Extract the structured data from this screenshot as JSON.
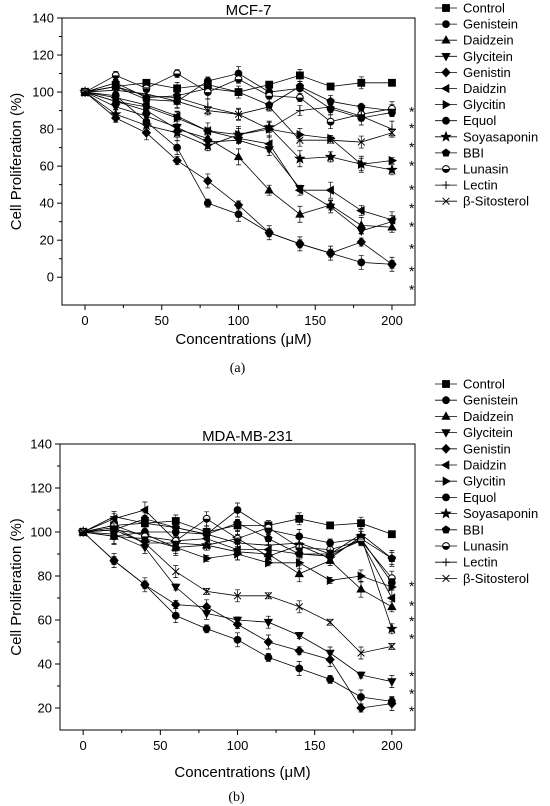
{
  "chart_data": [
    {
      "type": "line",
      "title": "MCF-7",
      "panel_label": "(a)",
      "xlabel": "Concentrations (μM)",
      "ylabel": "Cell Proliferation (%)",
      "xlim": [
        -15,
        215
      ],
      "ylim": [
        -15,
        140
      ],
      "xticks": [
        0,
        50,
        100,
        150,
        200
      ],
      "yticks": [
        0,
        20,
        40,
        60,
        80,
        100,
        120,
        140
      ],
      "grid": false,
      "legend_position": "right",
      "significance_marker": "*",
      "significance_y": [
        90,
        81,
        71,
        61,
        48,
        38,
        28,
        16,
        4,
        -6
      ],
      "x": [
        0,
        20,
        40,
        60,
        80,
        100,
        120,
        140,
        160,
        180,
        200
      ],
      "series": [
        {
          "name": "Control",
          "marker": "square",
          "values": [
            100,
            103,
            105,
            102,
            104,
            100,
            104,
            109,
            103,
            105,
            105
          ]
        },
        {
          "name": "Genistein",
          "marker": "circle",
          "values": [
            100,
            98,
            84,
            70,
            40,
            34,
            24,
            18,
            13,
            8,
            7
          ]
        },
        {
          "name": "Daidzein",
          "marker": "triangle-up",
          "values": [
            100,
            95,
            90,
            80,
            75,
            65,
            47,
            34,
            39,
            28,
            27
          ]
        },
        {
          "name": "Glycitein",
          "marker": "triangle-down",
          "values": [
            100,
            92,
            87,
            81,
            73,
            74,
            69,
            48,
            38,
            25,
            30
          ]
        },
        {
          "name": "Genistin",
          "marker": "diamond",
          "values": [
            100,
            86,
            78,
            63,
            52,
            39,
            24,
            18,
            13,
            19,
            7
          ]
        },
        {
          "name": "Daidzin",
          "marker": "triangle-left",
          "values": [
            100,
            97,
            93,
            87,
            79,
            75,
            72,
            47,
            47,
            36,
            31
          ]
        },
        {
          "name": "Glycitin",
          "marker": "triangle-right",
          "values": [
            100,
            95,
            92,
            86,
            79,
            77,
            80,
            77,
            75,
            61,
            63
          ]
        },
        {
          "name": "Equol",
          "marker": "circle",
          "values": [
            100,
            103,
            96,
            95,
            106,
            110,
            100,
            102,
            91,
            86,
            89
          ]
        },
        {
          "name": "Soyasaponin",
          "marker": "star",
          "values": [
            100,
            88,
            82,
            78,
            71,
            77,
            81,
            64,
            65,
            61,
            58
          ]
        },
        {
          "name": "BBI",
          "marker": "pentagon",
          "values": [
            100,
            105,
            97,
            98,
            102,
            100,
            93,
            103,
            95,
            92,
            90
          ]
        },
        {
          "name": "Lunasin",
          "marker": "circle-half",
          "values": [
            100,
            109,
            102,
            110,
            100,
            107,
            98,
            97,
            84,
            88,
            91
          ]
        },
        {
          "name": "Lectin",
          "marker": "plus",
          "values": [
            100,
            103,
            98,
            97,
            92,
            88,
            80,
            90,
            92,
            87,
            80
          ]
        },
        {
          "name": "β-Sitosterol",
          "marker": "x",
          "values": [
            100,
            101,
            99,
            95,
            90,
            88,
            92,
            74,
            74,
            73,
            78
          ]
        }
      ]
    },
    {
      "type": "line",
      "title": "MDA-MB-231",
      "panel_label": "(b)",
      "xlabel": "Concentrations (μM)",
      "ylabel": "Cell Proliferation (%)",
      "xlim": [
        -15,
        215
      ],
      "ylim": [
        10,
        140
      ],
      "xticks": [
        0,
        50,
        100,
        150,
        200
      ],
      "yticks": [
        20,
        40,
        60,
        80,
        100,
        120,
        140
      ],
      "grid": false,
      "legend_position": "right",
      "significance_marker": "*",
      "significance_y": [
        76,
        67,
        60,
        52,
        35,
        27,
        19
      ],
      "x": [
        0,
        20,
        40,
        60,
        80,
        100,
        120,
        140,
        160,
        180,
        200
      ],
      "series": [
        {
          "name": "Control",
          "marker": "square",
          "values": [
            100,
            103,
            104,
            105,
            100,
            103,
            103,
            106,
            103,
            104,
            99
          ]
        },
        {
          "name": "Genistein",
          "marker": "circle",
          "values": [
            100,
            87,
            76,
            62,
            56,
            51,
            43,
            38,
            33,
            25,
            23
          ]
        },
        {
          "name": "Daidzein",
          "marker": "triangle-up",
          "values": [
            100,
            98,
            97,
            93,
            94,
            91,
            90,
            81,
            87,
            74,
            66
          ]
        },
        {
          "name": "Glycitein",
          "marker": "triangle-down",
          "values": [
            100,
            99,
            93,
            75,
            63,
            60,
            59,
            53,
            45,
            35,
            32
          ]
        },
        {
          "name": "Genistin",
          "marker": "diamond",
          "values": [
            100,
            87,
            76,
            67,
            66,
            58,
            50,
            46,
            42,
            20,
            22
          ]
        },
        {
          "name": "Daidzin",
          "marker": "triangle-left",
          "values": [
            100,
            106,
            110,
            96,
            97,
            92,
            92,
            90,
            90,
            96,
            70
          ]
        },
        {
          "name": "Glycitin",
          "marker": "triangle-right",
          "values": [
            100,
            101,
            99,
            93,
            88,
            90,
            86,
            86,
            78,
            80,
            75
          ]
        },
        {
          "name": "Equol",
          "marker": "circle",
          "values": [
            100,
            98,
            100,
            100,
            99,
            110,
            101,
            98,
            95,
            97,
            77
          ]
        },
        {
          "name": "Soyasaponin",
          "marker": "star",
          "values": [
            100,
            102,
            95,
            95,
            94,
            97,
            89,
            94,
            88,
            98,
            56
          ]
        },
        {
          "name": "BBI",
          "marker": "pentagon",
          "values": [
            100,
            101,
            106,
            102,
            99,
            104,
            97,
            90,
            89,
            97,
            88
          ]
        },
        {
          "name": "Lunasin",
          "marker": "circle-half",
          "values": [
            100,
            103,
            98,
            96,
            106,
            97,
            102,
            93,
            92,
            96,
            79
          ]
        },
        {
          "name": "Lectin",
          "marker": "plus",
          "values": [
            100,
            107,
            104,
            102,
            99,
            95,
            94,
            95,
            90,
            99,
            88
          ]
        },
        {
          "name": "β-Sitosterol",
          "marker": "x",
          "values": [
            100,
            101,
            95,
            82,
            73,
            71,
            71,
            66,
            59,
            45,
            48
          ]
        }
      ]
    }
  ]
}
